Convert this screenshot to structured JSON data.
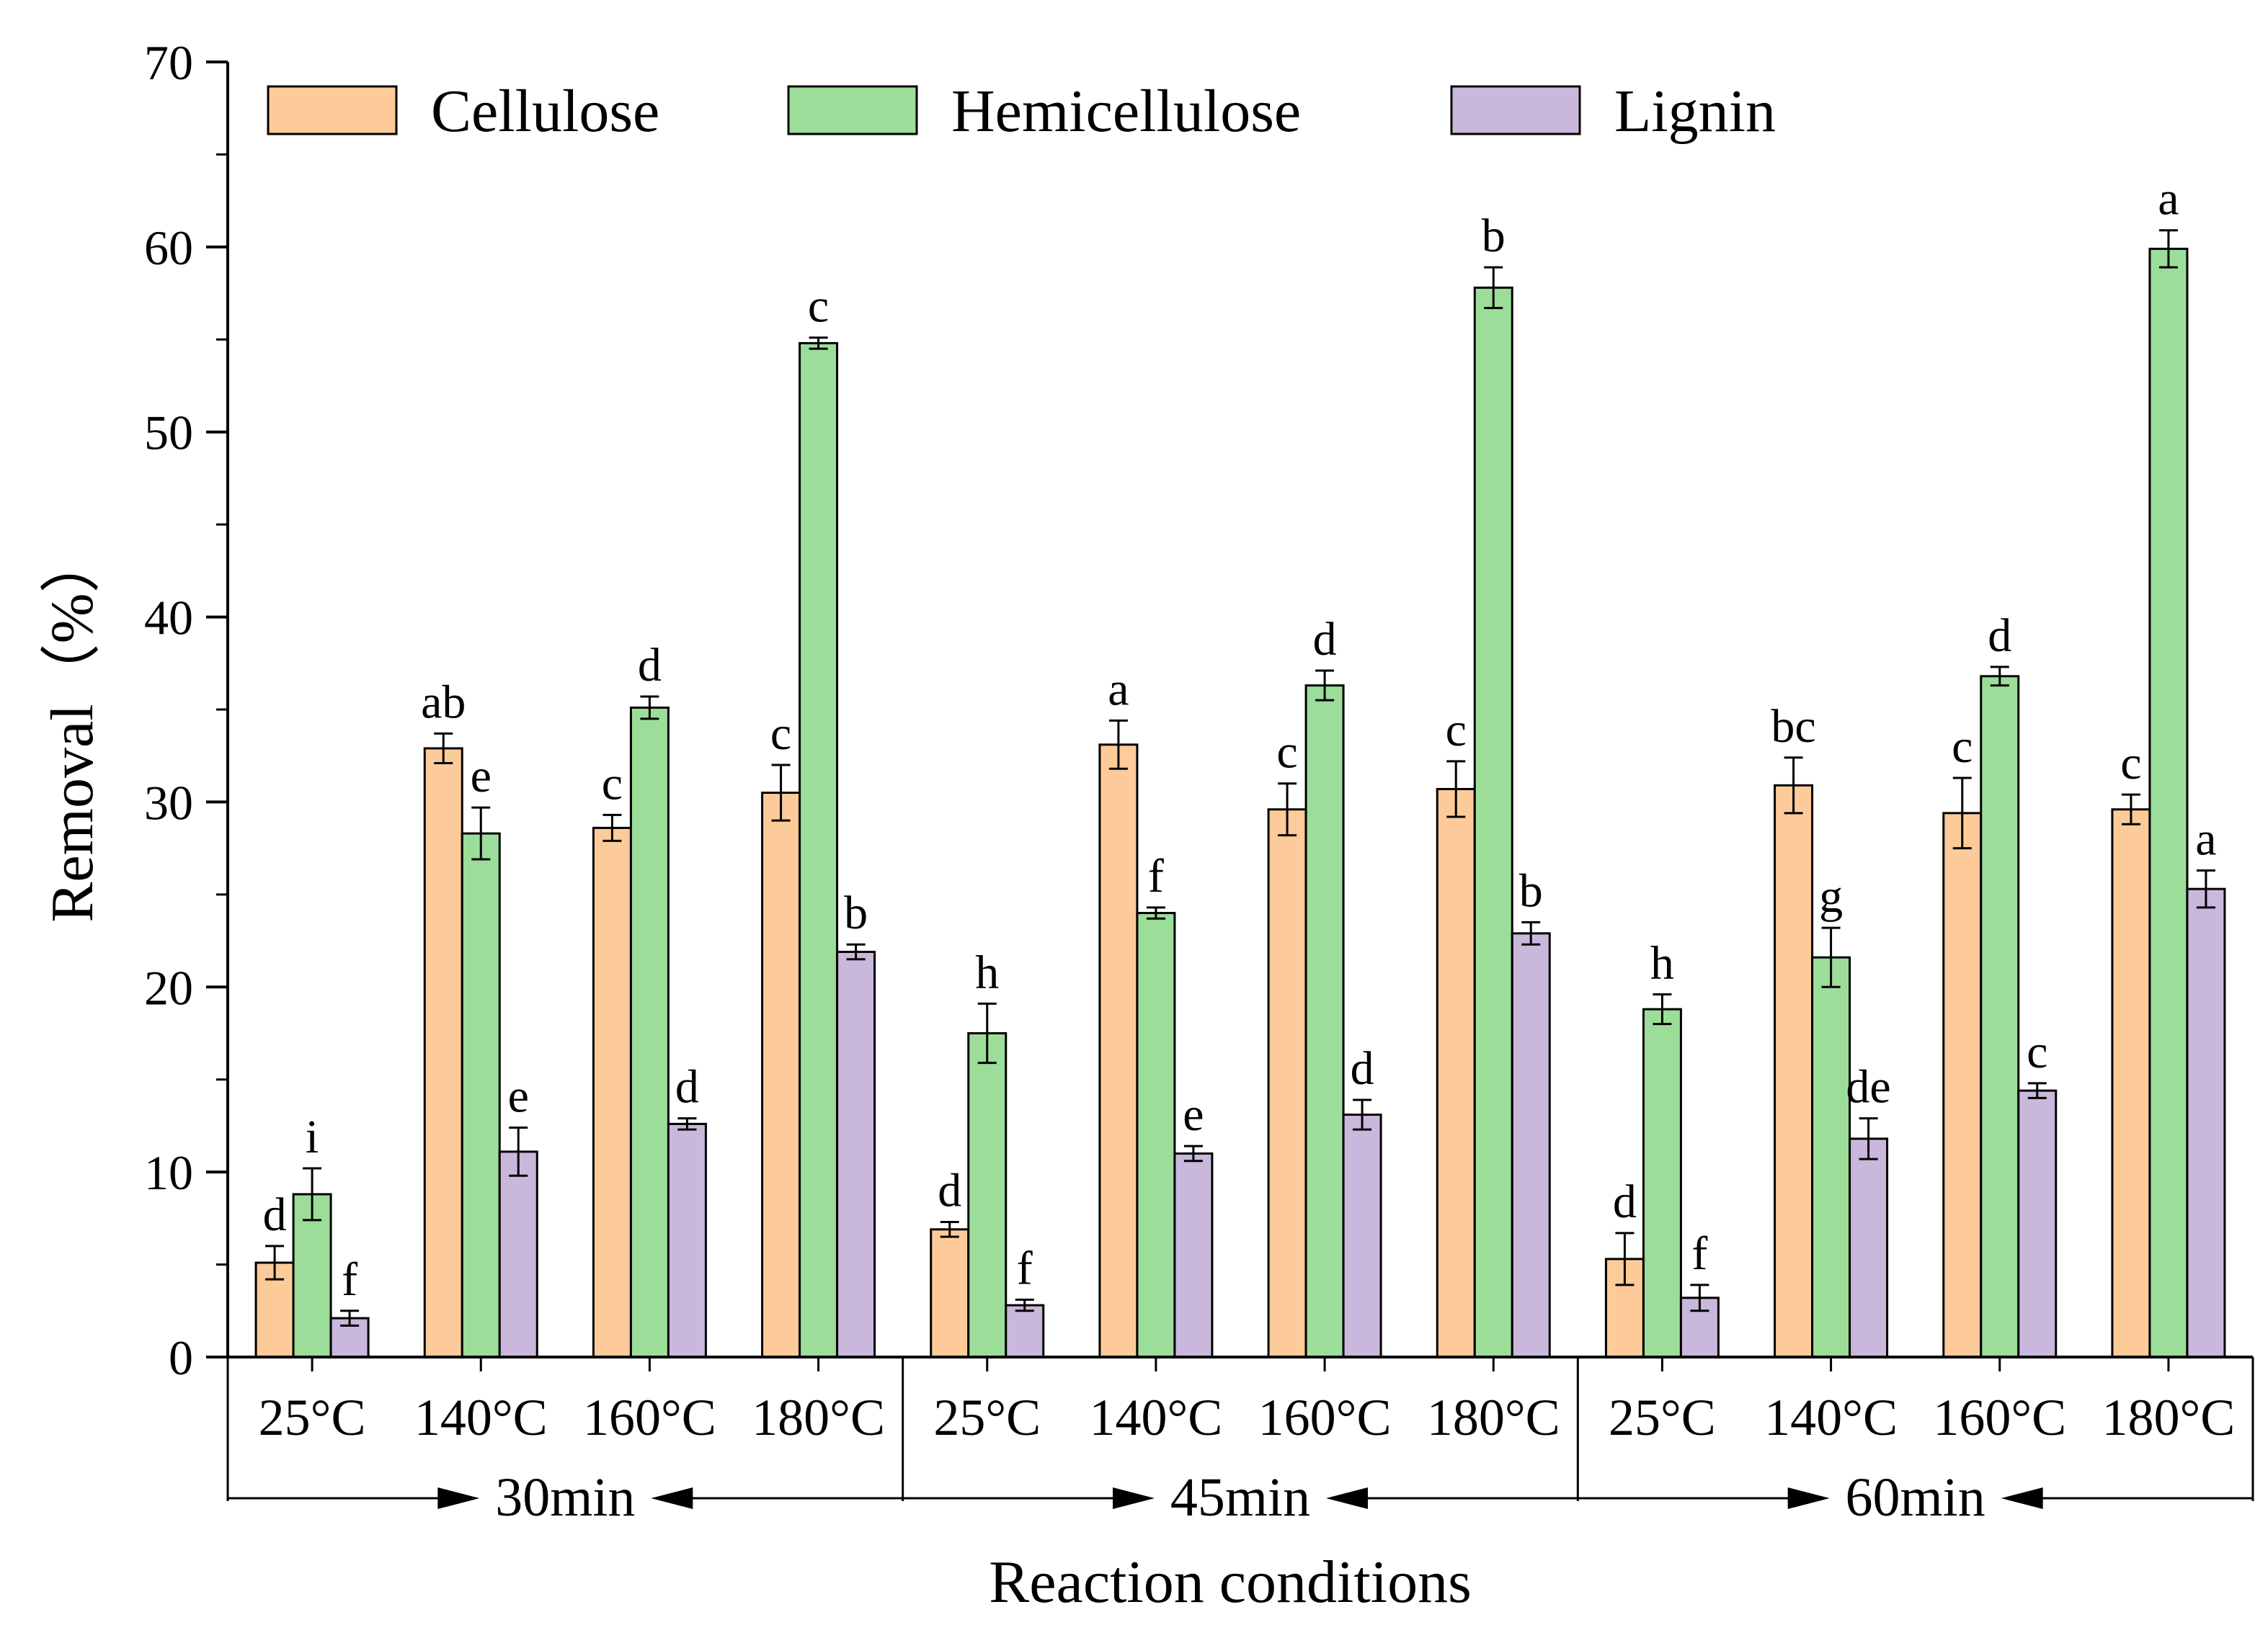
{
  "chart_data": {
    "type": "bar",
    "title": "",
    "xlabel": "Reaction conditions",
    "ylabel": "Removal（%）",
    "ylim": [
      0,
      70
    ],
    "yticks": [
      0,
      10,
      20,
      30,
      40,
      50,
      60,
      70
    ],
    "grid": false,
    "legend_position": "top",
    "colors": {
      "Cellulose": "#FDCB9A",
      "Hemicellulose": "#9CDD9A",
      "Lignin": "#C9B7DC"
    },
    "groups": [
      {
        "label": "30min",
        "categories": [
          "25°C",
          "140°C",
          "160°C",
          "180°C"
        ]
      },
      {
        "label": "45min",
        "categories": [
          "25°C",
          "140°C",
          "160°C",
          "180°C"
        ]
      },
      {
        "label": "60min",
        "categories": [
          "25°C",
          "140°C",
          "160°C",
          "180°C"
        ]
      }
    ],
    "series": [
      {
        "name": "Cellulose",
        "values": [
          5.1,
          32.9,
          28.6,
          30.5,
          6.9,
          33.1,
          29.6,
          30.7,
          5.3,
          30.9,
          29.4,
          29.6
        ],
        "errors": [
          0.9,
          0.8,
          0.7,
          1.5,
          0.4,
          1.3,
          1.4,
          1.5,
          1.4,
          1.5,
          1.9,
          0.8
        ],
        "labels": [
          "d",
          "ab",
          "c",
          "c",
          "d",
          "a",
          "c",
          "c",
          "d",
          "bc",
          "c",
          "c"
        ]
      },
      {
        "name": "Hemicellulose",
        "values": [
          8.8,
          28.3,
          35.1,
          54.8,
          17.5,
          24.0,
          36.3,
          57.8,
          18.8,
          21.6,
          36.8,
          59.9
        ],
        "errors": [
          1.4,
          1.4,
          0.6,
          0.3,
          1.6,
          0.3,
          0.8,
          1.1,
          0.8,
          1.6,
          0.5,
          1.0
        ],
        "labels": [
          "i",
          "e",
          "d",
          "c",
          "h",
          "f",
          "d",
          "b",
          "h",
          "g",
          "d",
          "a"
        ]
      },
      {
        "name": "Lignin",
        "values": [
          2.1,
          11.1,
          12.6,
          21.9,
          2.8,
          11.0,
          13.1,
          22.9,
          3.2,
          11.8,
          14.4,
          25.3
        ],
        "errors": [
          0.4,
          1.3,
          0.3,
          0.4,
          0.3,
          0.4,
          0.8,
          0.6,
          0.7,
          1.1,
          0.4,
          1.0
        ],
        "labels": [
          "f",
          "e",
          "d",
          "b",
          "f",
          "e",
          "d",
          "b",
          "f",
          "de",
          "c",
          "a"
        ]
      }
    ]
  }
}
